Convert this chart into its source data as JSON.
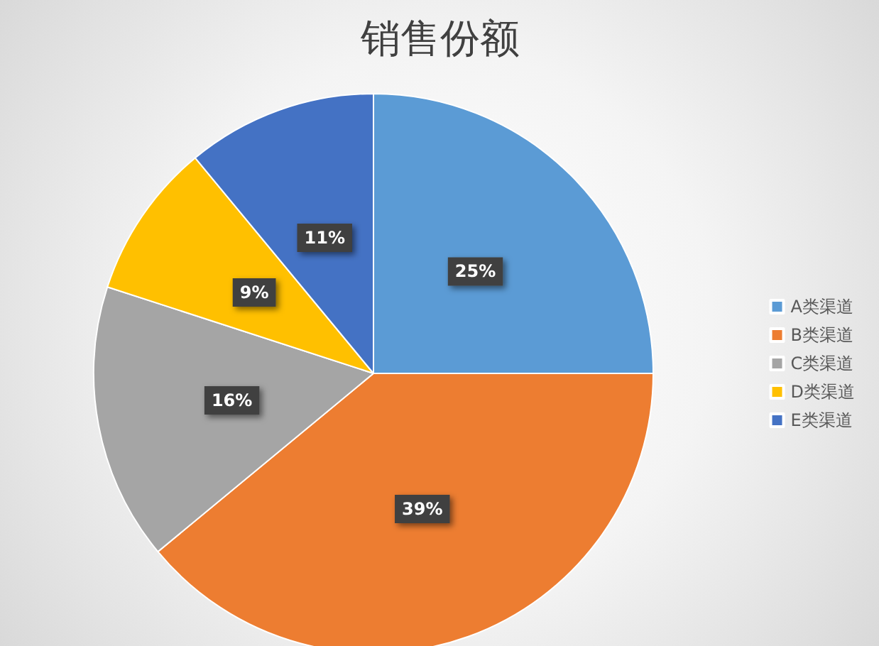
{
  "chart_data": {
    "type": "pie",
    "title": "销售份额",
    "categories": [
      "A类渠道",
      "B类渠道",
      "C类渠道",
      "D类渠道",
      "E类渠道"
    ],
    "values": [
      25,
      39,
      16,
      9,
      11
    ],
    "value_labels": [
      "25%",
      "39%",
      "16%",
      "9%",
      "11%"
    ],
    "colors": [
      "#5b9bd5",
      "#ed7d31",
      "#a5a5a5",
      "#ffc000",
      "#4472c4"
    ],
    "legend": "right"
  }
}
